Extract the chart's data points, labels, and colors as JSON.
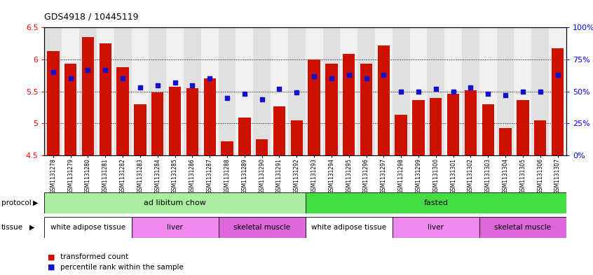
{
  "title": "GDS4918 / 10445119",
  "samples": [
    "GSM1131278",
    "GSM1131279",
    "GSM1131280",
    "GSM1131281",
    "GSM1131282",
    "GSM1131283",
    "GSM1131284",
    "GSM1131285",
    "GSM1131286",
    "GSM1131287",
    "GSM1131288",
    "GSM1131289",
    "GSM1131290",
    "GSM1131291",
    "GSM1131292",
    "GSM1131293",
    "GSM1131294",
    "GSM1131295",
    "GSM1131296",
    "GSM1131297",
    "GSM1131298",
    "GSM1131299",
    "GSM1131300",
    "GSM1131301",
    "GSM1131302",
    "GSM1131303",
    "GSM1131304",
    "GSM1131305",
    "GSM1131306",
    "GSM1131307"
  ],
  "bar_values": [
    6.13,
    5.93,
    6.35,
    6.25,
    5.88,
    5.3,
    5.48,
    5.57,
    5.55,
    5.7,
    4.72,
    5.09,
    4.75,
    5.27,
    5.05,
    6.0,
    5.93,
    6.09,
    5.93,
    6.22,
    5.13,
    5.37,
    5.4,
    5.46,
    5.52,
    5.3,
    4.93,
    5.36,
    5.05,
    6.17
  ],
  "dot_values_pct": [
    65,
    60,
    67,
    67,
    60,
    53,
    55,
    57,
    55,
    60,
    45,
    48,
    44,
    52,
    49,
    62,
    60,
    63,
    60,
    63,
    50,
    50,
    52,
    50,
    53,
    48,
    47,
    50,
    50,
    63
  ],
  "ylim_left": [
    4.5,
    6.5
  ],
  "ylim_right": [
    0,
    100
  ],
  "yticks_left": [
    4.5,
    5.0,
    5.5,
    6.0,
    6.5
  ],
  "ytick_labels_left": [
    "4.5",
    "5",
    "5.5",
    "6",
    "6.5"
  ],
  "yticks_right": [
    0,
    25,
    50,
    75,
    100
  ],
  "ytick_labels_right": [
    "0%",
    "25%",
    "50%",
    "75%",
    "100%"
  ],
  "bar_color": "#cc1100",
  "dot_color": "#1111cc",
  "bg_color": "#ffffff",
  "col_bg_even": "#e0e0e0",
  "col_bg_odd": "#f0f0f0",
  "protocol_groups": [
    {
      "label": "ad libitum chow",
      "start": 0,
      "end": 14,
      "color": "#aaeea0"
    },
    {
      "label": "fasted",
      "start": 15,
      "end": 29,
      "color": "#44dd44"
    }
  ],
  "tissue_groups": [
    {
      "label": "white adipose tissue",
      "start": 0,
      "end": 4,
      "color": "#ffffff"
    },
    {
      "label": "liver",
      "start": 5,
      "end": 9,
      "color": "#ee88ee"
    },
    {
      "label": "skeletal muscle",
      "start": 10,
      "end": 14,
      "color": "#dd66dd"
    },
    {
      "label": "white adipose tissue",
      "start": 15,
      "end": 19,
      "color": "#ffffff"
    },
    {
      "label": "liver",
      "start": 20,
      "end": 24,
      "color": "#ee88ee"
    },
    {
      "label": "skeletal muscle",
      "start": 25,
      "end": 29,
      "color": "#dd66dd"
    }
  ]
}
